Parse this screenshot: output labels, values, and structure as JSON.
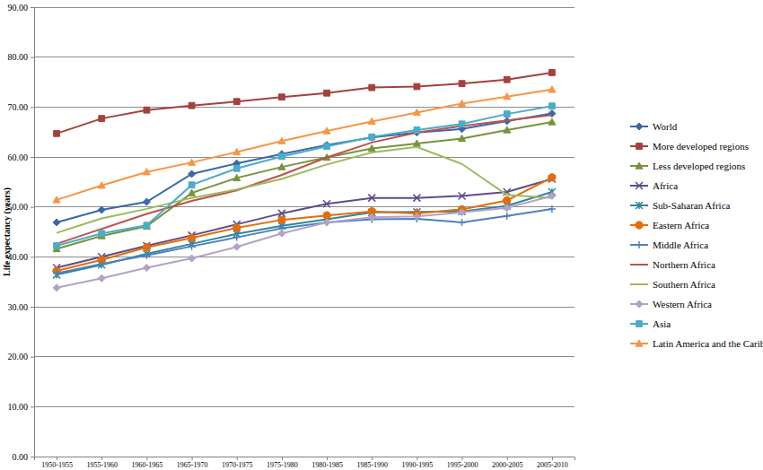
{
  "chart_data": {
    "type": "line",
    "ylabel": "Life expectancy (years)",
    "categories": [
      "1950-1955",
      "1955-1960",
      "1960-1965",
      "1965-1970",
      "1970-1975",
      "1975-1980",
      "1980-1985",
      "1985-1990",
      "1990-1995",
      "1995-2000",
      "2000-2005",
      "2005-2010"
    ],
    "ylim": [
      0,
      90
    ],
    "yticks": [
      {
        "value": 0,
        "label": "0.00"
      },
      {
        "value": 10,
        "label": "10.00"
      },
      {
        "value": 20,
        "label": "20.00"
      },
      {
        "value": 30,
        "label": "30.00"
      },
      {
        "value": 40,
        "label": "40.00"
      },
      {
        "value": 50,
        "label": "50.00"
      },
      {
        "value": 60,
        "label": "60.00"
      },
      {
        "value": 70,
        "label": "70.00"
      },
      {
        "value": 80,
        "label": "80.00"
      },
      {
        "value": 90,
        "label": "90.00"
      }
    ],
    "grid": true,
    "legend": "right",
    "series": [
      {
        "name": "World",
        "color": "#3a67a8",
        "marker": "diamond",
        "line_style": "solid",
        "values": [
          46.9,
          49.4,
          51.0,
          56.6,
          58.7,
          60.6,
          62.4,
          63.9,
          64.9,
          65.6,
          67.2,
          68.7
        ]
      },
      {
        "name": "More developed regions",
        "color": "#a5403d",
        "marker": "square",
        "line_style": "solid",
        "values": [
          64.7,
          67.7,
          69.4,
          70.3,
          71.1,
          72.0,
          72.8,
          73.9,
          74.1,
          74.7,
          75.5,
          76.9
        ]
      },
      {
        "name": "Less developed regions",
        "color": "#77933c",
        "marker": "triangle",
        "line_style": "solid",
        "values": [
          41.6,
          44.2,
          46.1,
          52.8,
          55.8,
          58.0,
          59.9,
          61.7,
          62.7,
          63.7,
          65.4,
          67.0
        ]
      },
      {
        "name": "Africa",
        "color": "#5f4b8b",
        "marker": "x",
        "line_style": "solid",
        "values": [
          37.8,
          40.0,
          42.2,
          44.3,
          46.5,
          48.7,
          50.6,
          51.8,
          51.8,
          52.2,
          53.0,
          55.6
        ]
      },
      {
        "name": "Sub-Saharan Africa",
        "color": "#31859c",
        "marker": "asterisk",
        "line_style": "solid",
        "values": [
          36.4,
          38.4,
          40.6,
          42.6,
          44.6,
          46.2,
          47.5,
          48.9,
          49.0,
          49.1,
          50.2,
          53.0
        ]
      },
      {
        "name": "Eastern Africa",
        "color": "#e46c0a",
        "marker": "circle",
        "line_style": "solid",
        "values": [
          37.2,
          39.4,
          41.9,
          43.8,
          45.8,
          47.4,
          48.3,
          49.1,
          48.7,
          49.5,
          51.3,
          55.9
        ]
      },
      {
        "name": "Middle Africa",
        "color": "#4f81bd",
        "marker": "plus",
        "line_style": "solid",
        "values": [
          36.7,
          38.6,
          40.3,
          42.1,
          43.9,
          45.7,
          46.9,
          47.5,
          47.6,
          46.9,
          48.2,
          49.6
        ]
      },
      {
        "name": "Northern Africa",
        "color": "#c0504d",
        "marker": "none",
        "line_style": "solid",
        "values": [
          42.6,
          45.6,
          48.6,
          51.2,
          53.3,
          56.4,
          59.9,
          62.9,
          64.9,
          66.2,
          67.3,
          68.4
        ]
      },
      {
        "name": "Southern Africa",
        "color": "#9bbb59",
        "marker": "none",
        "line_style": "solid",
        "values": [
          44.8,
          47.7,
          49.6,
          51.8,
          53.5,
          55.6,
          58.5,
          60.9,
          62.0,
          58.6,
          52.4,
          51.8
        ]
      },
      {
        "name": "Western Africa",
        "color": "#b3a2c7",
        "marker": "diamond",
        "line_style": "solid",
        "values": [
          33.8,
          35.7,
          37.8,
          39.7,
          42.0,
          44.7,
          46.9,
          47.9,
          48.1,
          48.9,
          49.8,
          52.2
        ]
      },
      {
        "name": "Asia",
        "color": "#4bacc6",
        "marker": "square",
        "line_style": "solid",
        "values": [
          42.2,
          44.7,
          46.3,
          54.4,
          57.7,
          60.1,
          62.1,
          64.0,
          65.4,
          66.6,
          68.6,
          70.2
        ]
      },
      {
        "name": "Latin America and the Caribbean",
        "color": "#f79646",
        "marker": "triangle",
        "line_style": "solid",
        "values": [
          51.4,
          54.3,
          57.0,
          58.9,
          61.0,
          63.2,
          65.2,
          67.1,
          68.9,
          70.7,
          72.1,
          73.5
        ]
      }
    ]
  }
}
